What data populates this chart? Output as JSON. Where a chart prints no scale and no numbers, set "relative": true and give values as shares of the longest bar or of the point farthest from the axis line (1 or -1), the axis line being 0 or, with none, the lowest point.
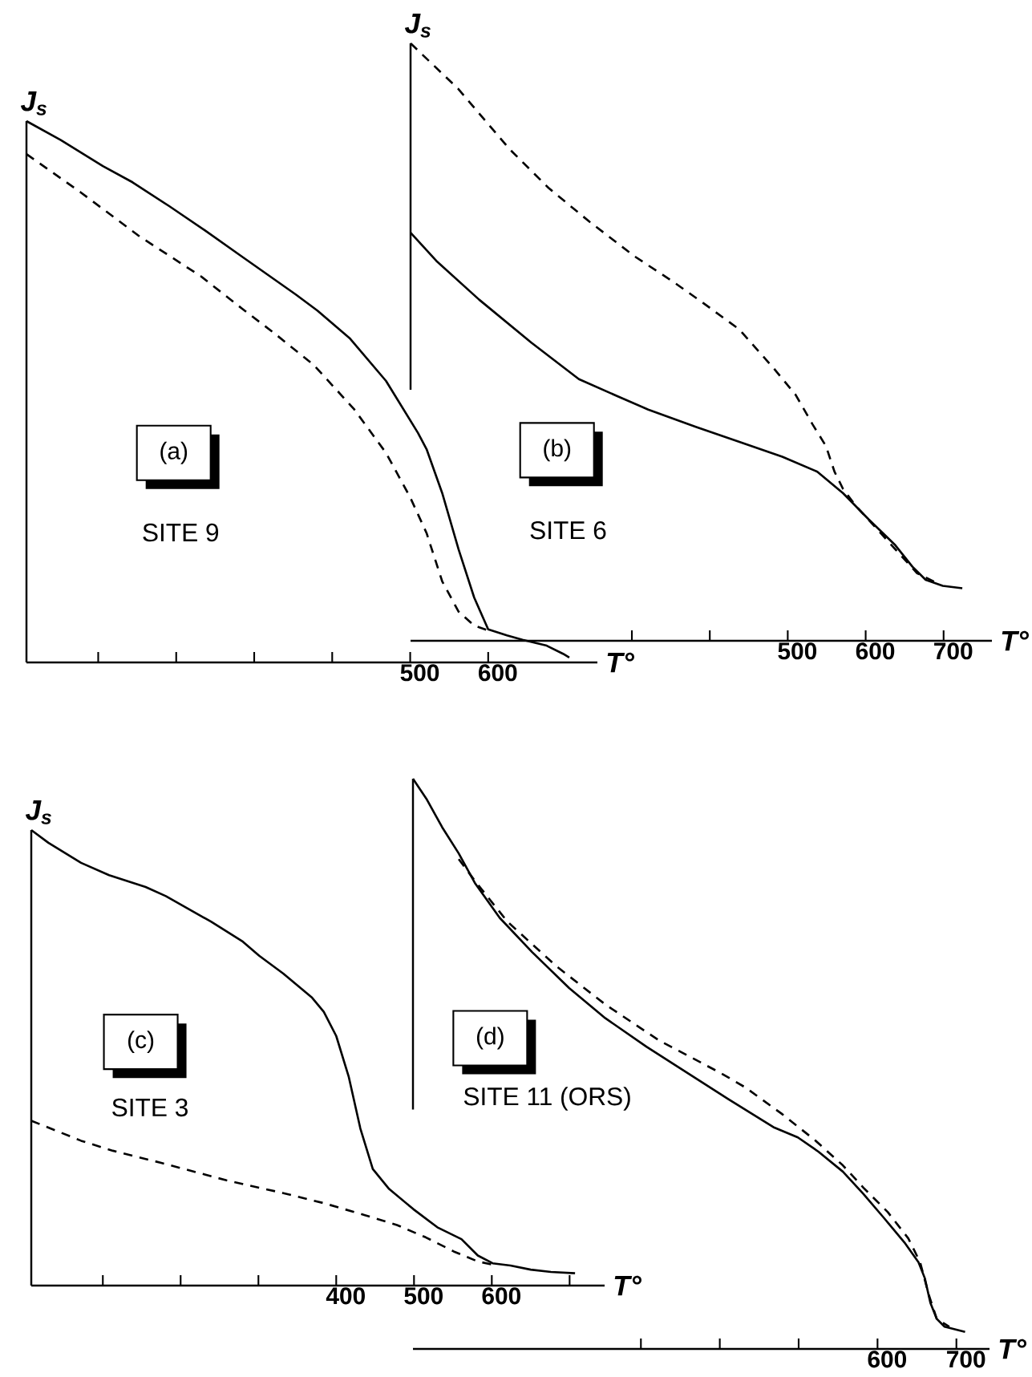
{
  "chart_data": [
    {
      "type": "line",
      "relative": true,
      "xlabel": "T°",
      "ylabel": "J$_{s}$",
      "annotations": [
        "(a)",
        "SITE 9"
      ],
      "xlim": [
        8,
        740
      ],
      "xticks": [
        {
          "value": 100,
          "label": null
        },
        {
          "value": 200,
          "label": null
        },
        {
          "value": 300,
          "label": null
        },
        {
          "value": 400,
          "label": null
        },
        500,
        600
      ],
      "series": [
        {
          "color": "#000000",
          "line_style": "solid",
          "x": [
            8,
            52,
            106,
            144,
            191,
            237,
            284,
            353,
            381,
            423,
            469,
            510,
            521,
            541,
            562,
            582,
            600,
            624,
            644,
            675,
            696,
            704
          ],
          "values": [
            1.0,
            0.965,
            0.917,
            0.887,
            0.843,
            0.798,
            0.75,
            0.68,
            0.65,
            0.598,
            0.52,
            0.424,
            0.394,
            0.313,
            0.209,
            0.12,
            0.061,
            0.05,
            0.042,
            0.031,
            0.016,
            0.009
          ]
        },
        {
          "color": "#000000",
          "line_style": "dashed",
          "x": [
            8,
            77,
            153,
            232,
            284,
            325,
            376,
            428,
            469,
            500,
            521,
            541,
            562,
            582,
            600
          ],
          "values": [
            0.939,
            0.869,
            0.787,
            0.713,
            0.654,
            0.609,
            0.55,
            0.468,
            0.387,
            0.305,
            0.239,
            0.15,
            0.094,
            0.068,
            0.059
          ]
        }
      ]
    },
    {
      "type": "line",
      "relative": true,
      "xlabel": "T°",
      "ylabel": "J$_{s}$",
      "annotations": [
        "(b)",
        "SITE 6"
      ],
      "xlim": [
        16,
        762
      ],
      "xticks": [
        {
          "value": 300,
          "label": null
        },
        {
          "value": 400,
          "label": null
        },
        500,
        600,
        700
      ],
      "series": [
        {
          "color": "#000000",
          "line_style": "solid",
          "x": [
            16,
            49,
            104,
            171,
            232,
            282,
            321,
            382,
            438,
            493,
            538,
            571,
            604,
            638,
            660,
            677,
            699,
            724
          ],
          "values": [
            0.683,
            0.636,
            0.571,
            0.499,
            0.438,
            0.409,
            0.387,
            0.358,
            0.333,
            0.308,
            0.283,
            0.247,
            0.203,
            0.16,
            0.124,
            0.102,
            0.092,
            0.088
          ]
        },
        {
          "color": "#000000",
          "line_style": "dashed",
          "x": [
            16,
            77,
            143,
            193,
            246,
            304,
            354,
            393,
            438,
            482,
            510,
            532,
            549,
            560,
            571,
            588,
            616,
            643,
            666,
            688
          ],
          "values": [
            1.0,
            0.924,
            0.823,
            0.758,
            0.701,
            0.643,
            0.6,
            0.564,
            0.521,
            0.456,
            0.412,
            0.362,
            0.326,
            0.283,
            0.254,
            0.225,
            0.185,
            0.146,
            0.113,
            0.099
          ]
        }
      ]
    },
    {
      "type": "line",
      "relative": true,
      "xlabel": "T°",
      "ylabel": "J$_{s}$",
      "annotations": [
        "(c)",
        "SITE 3"
      ],
      "xlim": [
        8,
        745
      ],
      "xticks": [
        {
          "value": 100,
          "label": null
        },
        {
          "value": 200,
          "label": null
        },
        {
          "value": 300,
          "label": null
        },
        400,
        500,
        600,
        {
          "value": 700,
          "label": null
        }
      ],
      "series": [
        {
          "color": "#000000",
          "line_style": "solid",
          "x": [
            8,
            30,
            72,
            108,
            155,
            181,
            239,
            280,
            301,
            332,
            369,
            384,
            400,
            416,
            431,
            447,
            468,
            499,
            530,
            561,
            582,
            601,
            624,
            650,
            676,
            707
          ],
          "values": [
            1.0,
            0.972,
            0.928,
            0.901,
            0.875,
            0.855,
            0.799,
            0.755,
            0.724,
            0.685,
            0.632,
            0.601,
            0.548,
            0.459,
            0.345,
            0.256,
            0.212,
            0.168,
            0.128,
            0.102,
            0.066,
            0.049,
            0.044,
            0.035,
            0.03,
            0.027
          ]
        },
        {
          "color": "#000000",
          "line_style": "dashed",
          "x": [
            8,
            72,
            113,
            176,
            259,
            332,
            384,
            436,
            478,
            515,
            551,
            582,
            601
          ],
          "values": [
            0.362,
            0.318,
            0.296,
            0.269,
            0.231,
            0.203,
            0.181,
            0.155,
            0.133,
            0.106,
            0.075,
            0.053,
            0.046
          ]
        }
      ]
    },
    {
      "type": "line",
      "relative": true,
      "xlabel": "T°",
      "annotations": [
        "(d)",
        "SITE 11 (ORS)"
      ],
      "xlim": [
        11,
        742
      ],
      "xticks": [
        {
          "value": 300,
          "label": null
        },
        {
          "value": 400,
          "label": null
        },
        {
          "value": 500,
          "label": null
        },
        600,
        700
      ],
      "series": [
        {
          "color": "#000000",
          "line_style": "solid",
          "x": [
            11,
            28,
            48,
            69,
            90,
            121,
            162,
            209,
            255,
            307,
            359,
            411,
            468,
            499,
            525,
            556,
            582,
            608,
            634,
            652,
            660,
            667,
            675,
            685,
            711
          ],
          "values": [
            1.0,
            0.965,
            0.915,
            0.869,
            0.816,
            0.756,
            0.696,
            0.633,
            0.58,
            0.53,
            0.484,
            0.438,
            0.389,
            0.371,
            0.346,
            0.311,
            0.272,
            0.23,
            0.187,
            0.152,
            0.124,
            0.081,
            0.053,
            0.039,
            0.03
          ]
        },
        {
          "color": "#000000",
          "line_style": "dashed",
          "x": [
            69,
            90,
            131,
            193,
            255,
            323,
            401,
            432,
            478,
            520,
            556,
            582,
            613,
            639,
            654,
            665,
            675,
            691
          ],
          "values": [
            0.859,
            0.82,
            0.749,
            0.671,
            0.604,
            0.541,
            0.484,
            0.459,
            0.413,
            0.367,
            0.322,
            0.283,
            0.24,
            0.194,
            0.152,
            0.095,
            0.053,
            0.039
          ]
        }
      ]
    }
  ]
}
